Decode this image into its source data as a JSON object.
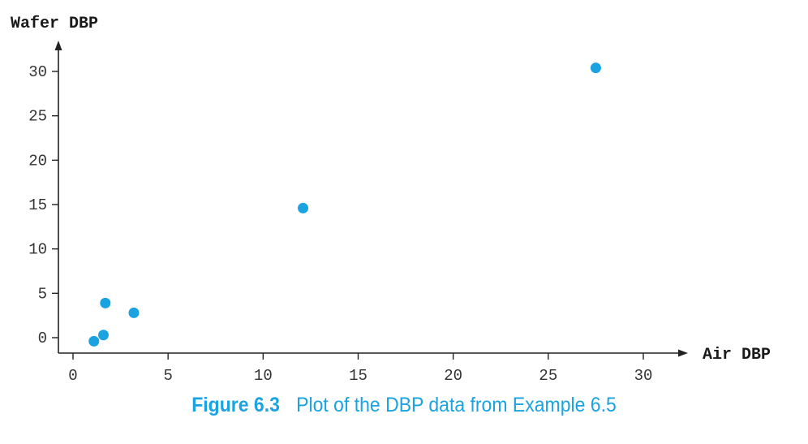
{
  "chart_data": {
    "type": "scatter",
    "title": "",
    "xlabel": "Air DBP",
    "ylabel": "Wafer DBP",
    "xlim": [
      -1,
      32
    ],
    "ylim": [
      -1.5,
      32
    ],
    "xticks": [
      0,
      5,
      10,
      15,
      20,
      25,
      30
    ],
    "yticks": [
      0,
      5,
      10,
      15,
      20,
      25,
      30
    ],
    "grid": false,
    "series": [
      {
        "x": [
          1.1,
          1.6,
          1.7,
          3.2,
          12.1,
          27.5
        ],
        "y": [
          -0.4,
          0.3,
          3.9,
          2.8,
          14.6,
          30.4
        ]
      }
    ],
    "colors": {
      "points": "#1aa3e0",
      "axes": "#222222",
      "caption": "#1aa3e0"
    }
  },
  "caption": {
    "label": "Figure 6.3",
    "text": "Plot of the DBP data from Example 6.5"
  }
}
